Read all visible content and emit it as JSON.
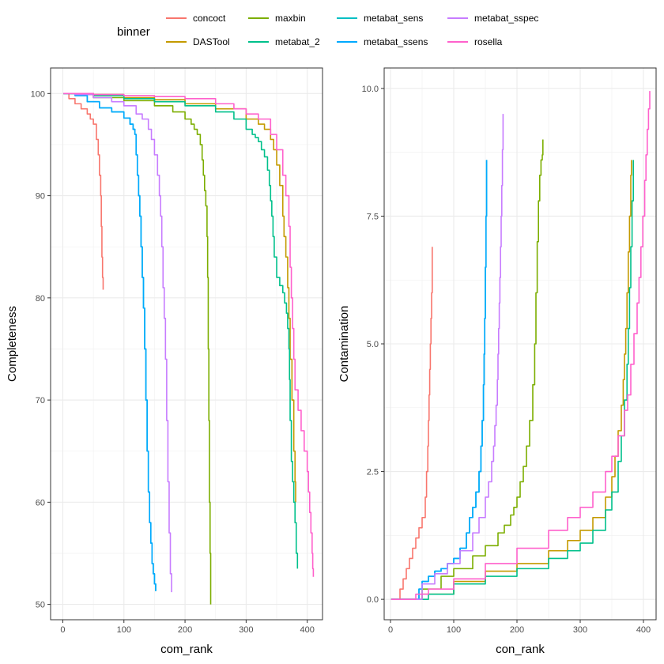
{
  "legend": {
    "title": "binner",
    "entries": [
      {
        "name": "concoct",
        "color": "#F8766D"
      },
      {
        "name": "DASTool",
        "color": "#C49A00"
      },
      {
        "name": "maxbin",
        "color": "#7CAE00"
      },
      {
        "name": "metabat_2",
        "color": "#00C08B"
      },
      {
        "name": "metabat_sens",
        "color": "#00BFC4"
      },
      {
        "name": "metabat_ssens",
        "color": "#00A9FF"
      },
      {
        "name": "metabat_sspec",
        "color": "#C77CFF"
      },
      {
        "name": "rosella",
        "color": "#FF61CC"
      }
    ]
  },
  "chart_data": [
    {
      "type": "line",
      "xlabel": "com_rank",
      "ylabel": "Completeness",
      "xlim": [
        -20,
        425
      ],
      "ylim": [
        48.5,
        102.5
      ],
      "x_ticks": [
        0,
        100,
        200,
        300,
        400
      ],
      "x_tick_labels": [
        "0",
        "100",
        "200",
        "300",
        "400"
      ],
      "y_ticks": [
        50,
        60,
        70,
        80,
        90,
        100
      ],
      "y_tick_labels": [
        "50",
        "60",
        "70",
        "80",
        "90",
        "100"
      ],
      "grid": true,
      "series": [
        {
          "name": "concoct",
          "x": [
            1,
            10,
            20,
            30,
            40,
            45,
            50,
            55,
            58,
            60,
            62,
            63,
            64,
            65,
            66
          ],
          "y": [
            100,
            99.5,
            99,
            98.5,
            98,
            97.5,
            97,
            95.5,
            94,
            92,
            90,
            87,
            84,
            82,
            80.8
          ]
        },
        {
          "name": "DASTool",
          "x": [
            1,
            30,
            50,
            100,
            150,
            200,
            250,
            300,
            320,
            330,
            340,
            345,
            350,
            355,
            360,
            362,
            365,
            368,
            370,
            372,
            375,
            378,
            380,
            381
          ],
          "y": [
            100,
            100,
            99.9,
            99.6,
            99.4,
            99,
            98.5,
            97.5,
            97,
            96.5,
            95.5,
            94.5,
            93,
            91,
            88,
            86,
            84,
            81,
            78,
            74,
            70,
            65,
            62,
            60
          ]
        },
        {
          "name": "maxbin",
          "x": [
            1,
            20,
            50,
            100,
            150,
            180,
            200,
            210,
            215,
            220,
            225,
            228,
            230,
            232,
            234,
            236,
            237,
            238,
            239,
            240,
            241,
            242
          ],
          "y": [
            100,
            99.9,
            99.6,
            99.3,
            98.8,
            98.2,
            97.5,
            97,
            96.5,
            96,
            95,
            93.5,
            92,
            90.5,
            89,
            86,
            82,
            75,
            68,
            60,
            55,
            50
          ]
        },
        {
          "name": "metabat_2",
          "x": [
            1,
            50,
            100,
            150,
            200,
            250,
            280,
            300,
            310,
            315,
            320,
            325,
            330,
            335,
            338,
            340,
            342,
            344,
            346,
            350,
            355,
            360,
            363,
            366,
            368,
            370,
            371,
            372,
            374,
            376,
            378,
            380,
            382,
            384
          ],
          "y": [
            100,
            99.8,
            99.5,
            99.2,
            98.8,
            98.2,
            97.5,
            96.5,
            96,
            95.7,
            95.3,
            94.5,
            93.8,
            92.5,
            91,
            89.5,
            88,
            86,
            84,
            82,
            81.2,
            80.5,
            79.5,
            78.5,
            77,
            75,
            72,
            68,
            64,
            62,
            60,
            58,
            55,
            53.5
          ]
        },
        {
          "name": "metabat_sens",
          "x": [
            1,
            20,
            40,
            60,
            80,
            100,
            110,
            115,
            118,
            120,
            122,
            124,
            126,
            128,
            130,
            132,
            134,
            136,
            138,
            140,
            142,
            144,
            146,
            148,
            150,
            152
          ],
          "y": [
            100,
            99.8,
            99.2,
            98.6,
            98.2,
            97.6,
            97,
            96.5,
            96,
            94,
            92,
            90,
            88,
            85,
            82,
            79,
            75,
            70,
            65,
            61,
            58,
            56,
            54,
            53,
            52,
            51.3
          ]
        },
        {
          "name": "metabat_ssens",
          "x": [
            1,
            20,
            40,
            60,
            80,
            100,
            110,
            115,
            118,
            120,
            122,
            124,
            126,
            128,
            130,
            132,
            134,
            136,
            138,
            140,
            142,
            144,
            146,
            148,
            150,
            152
          ],
          "y": [
            100,
            99.8,
            99.2,
            98.6,
            98.2,
            97.6,
            97,
            96.5,
            96,
            94,
            92,
            90,
            88,
            85,
            82,
            79,
            75,
            70,
            65,
            61,
            58,
            56,
            54,
            53,
            52,
            51.3
          ]
        },
        {
          "name": "metabat_sspec",
          "x": [
            1,
            20,
            50,
            80,
            100,
            120,
            130,
            140,
            145,
            150,
            155,
            158,
            160,
            162,
            164,
            166,
            168,
            170,
            172,
            174,
            176,
            178
          ],
          "y": [
            100,
            99.9,
            99.6,
            99.2,
            98.8,
            98,
            97.5,
            96.5,
            95.5,
            94,
            92,
            90,
            88,
            85,
            81,
            78,
            74,
            68,
            62,
            57,
            53,
            51.2
          ]
        },
        {
          "name": "rosella",
          "x": [
            1,
            50,
            100,
            150,
            200,
            250,
            280,
            300,
            320,
            340,
            350,
            360,
            365,
            370,
            372,
            374,
            376,
            378,
            380,
            385,
            390,
            395,
            400,
            402,
            404,
            406,
            408,
            409,
            410
          ],
          "y": [
            100,
            99.9,
            99.8,
            99.7,
            99.5,
            99,
            98.5,
            98,
            97.5,
            96,
            94.5,
            92,
            90,
            87,
            83,
            80,
            77,
            74,
            71,
            69,
            67,
            65,
            63,
            61,
            59,
            57,
            55,
            53.5,
            52.7
          ]
        }
      ]
    },
    {
      "type": "line",
      "xlabel": "con_rank",
      "ylabel": "Contamination",
      "xlim": [
        -10,
        420
      ],
      "ylim": [
        -0.4,
        10.4
      ],
      "x_ticks": [
        0,
        100,
        200,
        300,
        400
      ],
      "x_tick_labels": [
        "0",
        "100",
        "200",
        "300",
        "400"
      ],
      "y_ticks": [
        0,
        2.5,
        5,
        7.5,
        10
      ],
      "y_tick_labels": [
        "0.0",
        "2.5",
        "5.0",
        "7.5",
        "10.0"
      ],
      "grid": true,
      "series": [
        {
          "name": "concoct",
          "x": [
            1,
            10,
            15,
            20,
            25,
            30,
            35,
            40,
            45,
            50,
            55,
            57,
            59,
            60,
            61,
            62,
            63,
            64,
            65,
            66
          ],
          "y": [
            0,
            0,
            0.2,
            0.4,
            0.6,
            0.8,
            1.0,
            1.2,
            1.4,
            1.6,
            2.0,
            2.5,
            3.0,
            3.5,
            4.0,
            4.5,
            5.0,
            5.5,
            6.0,
            6.9
          ]
        },
        {
          "name": "DASTool",
          "x": [
            1,
            40,
            50,
            100,
            150,
            200,
            250,
            280,
            300,
            320,
            340,
            350,
            355,
            360,
            365,
            368,
            370,
            372,
            374,
            376,
            378,
            380,
            381
          ],
          "y": [
            0,
            0,
            0.1,
            0.35,
            0.55,
            0.7,
            0.95,
            1.15,
            1.35,
            1.6,
            2.0,
            2.4,
            2.8,
            3.3,
            3.8,
            4.3,
            4.8,
            5.3,
            6.0,
            6.8,
            7.5,
            8.3,
            8.6
          ]
        },
        {
          "name": "maxbin",
          "x": [
            1,
            40,
            50,
            80,
            100,
            130,
            150,
            170,
            180,
            190,
            195,
            200,
            205,
            210,
            215,
            220,
            225,
            228,
            230,
            232,
            234,
            236,
            238,
            240,
            241
          ],
          "y": [
            0,
            0,
            0.2,
            0.45,
            0.6,
            0.85,
            1.05,
            1.3,
            1.45,
            1.65,
            1.8,
            2.0,
            2.3,
            2.6,
            3.0,
            3.5,
            4.2,
            5.0,
            6.0,
            7.0,
            7.8,
            8.3,
            8.6,
            8.7,
            9.0
          ]
        },
        {
          "name": "metabat_2",
          "x": [
            1,
            50,
            60,
            100,
            150,
            200,
            250,
            280,
            300,
            320,
            340,
            350,
            360,
            365,
            370,
            374,
            376,
            378,
            380,
            382,
            384
          ],
          "y": [
            0,
            0,
            0.1,
            0.3,
            0.45,
            0.6,
            0.8,
            0.95,
            1.1,
            1.35,
            1.75,
            2.1,
            2.7,
            3.2,
            3.9,
            4.6,
            5.3,
            6.1,
            6.9,
            7.8,
            8.6
          ]
        },
        {
          "name": "metabat_sens",
          "x": [
            1,
            40,
            45,
            50,
            60,
            70,
            80,
            90,
            100,
            110,
            120,
            125,
            130,
            135,
            140,
            143,
            145,
            147,
            148,
            149,
            150,
            151,
            152
          ],
          "y": [
            0,
            0,
            0.2,
            0.35,
            0.45,
            0.55,
            0.6,
            0.7,
            0.8,
            1.0,
            1.3,
            1.6,
            1.8,
            2.1,
            2.5,
            3.0,
            3.5,
            4.2,
            4.8,
            5.5,
            6.5,
            7.5,
            8.6
          ]
        },
        {
          "name": "metabat_ssens",
          "x": [
            1,
            40,
            45,
            50,
            60,
            70,
            80,
            90,
            100,
            110,
            120,
            125,
            130,
            135,
            140,
            143,
            145,
            147,
            148,
            149,
            150,
            151,
            152
          ],
          "y": [
            0,
            0,
            0.2,
            0.35,
            0.45,
            0.55,
            0.6,
            0.7,
            0.8,
            1.0,
            1.3,
            1.6,
            1.8,
            2.1,
            2.5,
            3.0,
            3.5,
            4.2,
            4.8,
            5.5,
            6.5,
            7.5,
            8.6
          ]
        },
        {
          "name": "metabat_sspec",
          "x": [
            1,
            40,
            50,
            70,
            90,
            110,
            130,
            140,
            150,
            155,
            160,
            163,
            165,
            167,
            169,
            170,
            171,
            172,
            173,
            174,
            175,
            176,
            177,
            178
          ],
          "y": [
            0,
            0,
            0.3,
            0.5,
            0.7,
            0.95,
            1.3,
            1.6,
            2.0,
            2.3,
            2.7,
            3.0,
            3.4,
            3.8,
            4.3,
            4.8,
            5.3,
            5.8,
            6.3,
            6.9,
            7.5,
            8.1,
            8.8,
            9.5
          ]
        },
        {
          "name": "rosella",
          "x": [
            1,
            30,
            40,
            60,
            100,
            150,
            200,
            250,
            280,
            300,
            320,
            340,
            350,
            360,
            370,
            375,
            380,
            385,
            390,
            393,
            396,
            399,
            402,
            404,
            406,
            408,
            410
          ],
          "y": [
            0,
            0,
            0.1,
            0.2,
            0.4,
            0.7,
            1.0,
            1.35,
            1.6,
            1.8,
            2.1,
            2.5,
            2.8,
            3.2,
            3.7,
            4.0,
            4.6,
            5.2,
            5.8,
            6.3,
            6.9,
            7.5,
            8.2,
            8.7,
            9.2,
            9.6,
            9.95
          ]
        }
      ]
    }
  ]
}
